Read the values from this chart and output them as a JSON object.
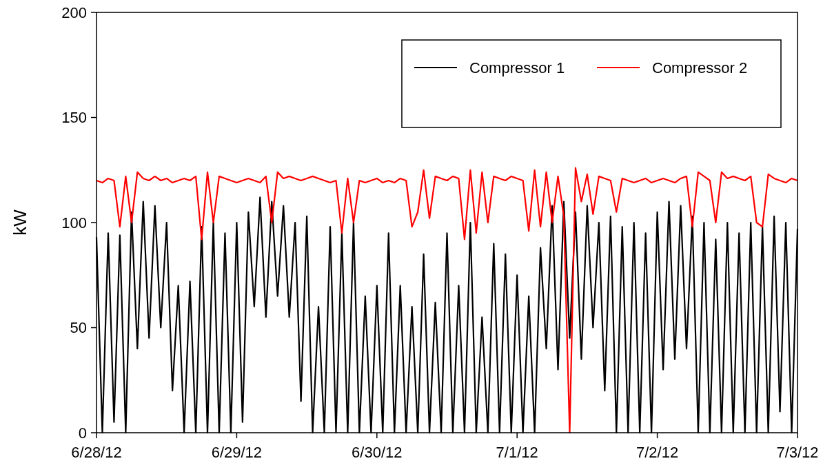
{
  "chart_data": {
    "type": "line",
    "ylabel": "kW",
    "ylim": [
      0,
      200
    ],
    "yticks": [
      0,
      50,
      100,
      150,
      200
    ],
    "xlim": [
      "--06-28T00:00",
      "--07-03T00:00"
    ],
    "xticks": [
      {
        "value": "--06-28T00:00",
        "label": "6/28/12"
      },
      {
        "value": "--06-29T00:00",
        "label": "6/29/12"
      },
      {
        "value": "--06-30T00:00",
        "label": "6/30/12"
      },
      {
        "value": "--07-01T00:00",
        "label": "7/1/12"
      },
      {
        "value": "--07-02T00:00",
        "label": "7/2/12"
      },
      {
        "value": "--07-03T00:00",
        "label": "7/3/12"
      }
    ],
    "legend": "top right",
    "grid": false,
    "line_style": "solid",
    "x": [
      "--06-28T00:00",
      "--06-28T01:00",
      "--06-28T02:00",
      "--06-28T03:00",
      "--06-28T04:00",
      "--06-28T05:00",
      "--06-28T06:00",
      "--06-28T07:00",
      "--06-28T08:00",
      "--06-28T09:00",
      "--06-28T10:00",
      "--06-28T11:00",
      "--06-28T12:00",
      "--06-28T13:00",
      "--06-28T14:00",
      "--06-28T15:00",
      "--06-28T16:00",
      "--06-28T17:00",
      "--06-28T18:00",
      "--06-28T19:00",
      "--06-28T20:00",
      "--06-28T21:00",
      "--06-28T22:00",
      "--06-28T23:00",
      "--06-29T00:00",
      "--06-29T01:00",
      "--06-29T02:00",
      "--06-29T03:00",
      "--06-29T04:00",
      "--06-29T05:00",
      "--06-29T06:00",
      "--06-29T07:00",
      "--06-29T08:00",
      "--06-29T09:00",
      "--06-29T10:00",
      "--06-29T11:00",
      "--06-29T12:00",
      "--06-29T13:00",
      "--06-29T14:00",
      "--06-29T15:00",
      "--06-29T16:00",
      "--06-29T17:00",
      "--06-29T18:00",
      "--06-29T19:00",
      "--06-29T20:00",
      "--06-29T21:00",
      "--06-29T22:00",
      "--06-29T23:00",
      "--06-30T00:00",
      "--06-30T01:00",
      "--06-30T02:00",
      "--06-30T03:00",
      "--06-30T04:00",
      "--06-30T05:00",
      "--06-30T06:00",
      "--06-30T07:00",
      "--06-30T08:00",
      "--06-30T09:00",
      "--06-30T10:00",
      "--06-30T11:00",
      "--06-30T12:00",
      "--06-30T13:00",
      "--06-30T14:00",
      "--06-30T15:00",
      "--06-30T16:00",
      "--06-30T17:00",
      "--06-30T18:00",
      "--06-30T19:00",
      "--06-30T20:00",
      "--06-30T21:00",
      "--06-30T22:00",
      "--06-30T23:00",
      "--07-01T00:00",
      "--07-01T01:00",
      "--07-01T02:00",
      "--07-01T03:00",
      "--07-01T04:00",
      "--07-01T05:00",
      "--07-01T06:00",
      "--07-01T07:00",
      "--07-01T08:00",
      "--07-01T09:00",
      "--07-01T10:00",
      "--07-01T11:00",
      "--07-01T12:00",
      "--07-01T13:00",
      "--07-01T14:00",
      "--07-01T15:00",
      "--07-01T16:00",
      "--07-01T17:00",
      "--07-01T18:00",
      "--07-01T19:00",
      "--07-01T20:00",
      "--07-01T21:00",
      "--07-01T22:00",
      "--07-01T23:00",
      "--07-02T00:00",
      "--07-02T01:00",
      "--07-02T02:00",
      "--07-02T03:00",
      "--07-02T04:00",
      "--07-02T05:00",
      "--07-02T06:00",
      "--07-02T07:00",
      "--07-02T08:00",
      "--07-02T09:00",
      "--07-02T10:00",
      "--07-02T11:00",
      "--07-02T12:00",
      "--07-02T13:00",
      "--07-02T14:00",
      "--07-02T15:00",
      "--07-02T16:00",
      "--07-02T17:00",
      "--07-02T18:00",
      "--07-02T19:00",
      "--07-02T20:00",
      "--07-02T21:00",
      "--07-02T22:00",
      "--07-02T23:00",
      "--07-03T00:00"
    ],
    "series": [
      {
        "name": "Compressor 1",
        "color": "#000000",
        "values": [
          93,
          0,
          95,
          5,
          94,
          0,
          105,
          40,
          110,
          45,
          108,
          50,
          100,
          20,
          70,
          0,
          72,
          0,
          98,
          0,
          100,
          0,
          95,
          0,
          100,
          5,
          105,
          60,
          112,
          55,
          110,
          65,
          108,
          55,
          100,
          15,
          103,
          0,
          60,
          0,
          98,
          0,
          95,
          0,
          100,
          0,
          65,
          0,
          70,
          0,
          95,
          0,
          70,
          0,
          60,
          0,
          85,
          0,
          62,
          0,
          95,
          0,
          70,
          0,
          100,
          0,
          55,
          0,
          90,
          0,
          85,
          0,
          75,
          0,
          65,
          0,
          88,
          40,
          108,
          30,
          110,
          45,
          105,
          35,
          108,
          50,
          100,
          20,
          103,
          0,
          98,
          0,
          100,
          0,
          95,
          0,
          105,
          30,
          110,
          35,
          108,
          40,
          103,
          0,
          100,
          0,
          92,
          0,
          100,
          0,
          95,
          0,
          100,
          0,
          98,
          0,
          103,
          10,
          100,
          0,
          97
        ]
      },
      {
        "name": "Compressor 2",
        "color": "#ff0000",
        "values": [
          120,
          119,
          121,
          120,
          98,
          122,
          100,
          124,
          121,
          120,
          122,
          120,
          121,
          119,
          120,
          121,
          120,
          122,
          92,
          124,
          100,
          122,
          121,
          120,
          119,
          120,
          121,
          120,
          119,
          122,
          100,
          124,
          121,
          122,
          121,
          120,
          121,
          122,
          121,
          120,
          119,
          120,
          95,
          121,
          100,
          120,
          119,
          120,
          121,
          119,
          120,
          119,
          121,
          120,
          98,
          105,
          125,
          102,
          122,
          121,
          120,
          122,
          121,
          92,
          125,
          95,
          124,
          100,
          122,
          121,
          120,
          122,
          121,
          120,
          96,
          125,
          98,
          124,
          100,
          122,
          103,
          0,
          126,
          110,
          123,
          104,
          122,
          121,
          120,
          105,
          121,
          120,
          119,
          120,
          121,
          119,
          120,
          121,
          120,
          119,
          121,
          122,
          98,
          124,
          122,
          120,
          100,
          124,
          121,
          122,
          121,
          120,
          122,
          100,
          98,
          123,
          121,
          120,
          119,
          121,
          120
        ]
      }
    ]
  }
}
